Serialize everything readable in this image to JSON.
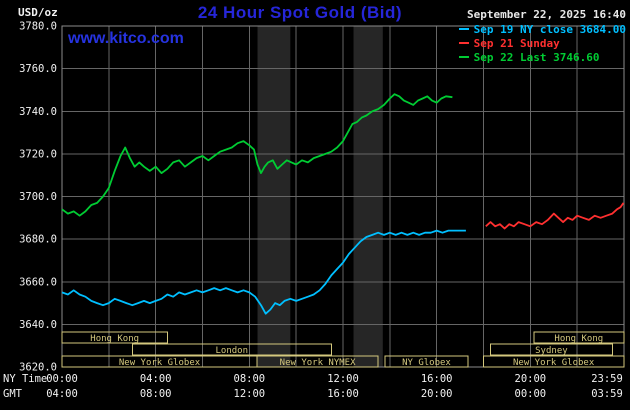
{
  "header": {
    "unit_label": "USD/oz",
    "title": "24 Hour Spot Gold (Bid)",
    "datetime": "September 22, 2025 16:40",
    "watermark": "www.kitco.com"
  },
  "legend": [
    {
      "label": "Sep 19 NY close 3684.00",
      "color": "#00bfff"
    },
    {
      "label": "Sep 21 Sunday",
      "color": "#ff3030"
    },
    {
      "label": "Sep 22 Last 3746.60",
      "color": "#00cc33"
    }
  ],
  "axes": {
    "y_ticks": [
      "3780.0",
      "3760.0",
      "3740.0",
      "3720.0",
      "3700.0",
      "3680.0",
      "3660.0",
      "3640.0",
      "3620.0"
    ],
    "x_rows": [
      {
        "label": "NY Time",
        "ticks": [
          "00:00",
          "04:00",
          "08:00",
          "12:00",
          "16:00",
          "20:00",
          "23:59"
        ]
      },
      {
        "label": "GMT",
        "ticks": [
          "04:00",
          "08:00",
          "12:00",
          "16:00",
          "20:00",
          "00:00",
          "03:59"
        ]
      }
    ]
  },
  "chart_data": {
    "type": "line",
    "title": "24 Hour Spot Gold (Bid)",
    "ylabel": "USD/oz",
    "xlabel": "NY Time (hours)",
    "xlim": [
      0,
      24
    ],
    "ylim": [
      3620,
      3780
    ],
    "y_tick_step": 20,
    "x_tick_hours": [
      0,
      4,
      8,
      12,
      16,
      20,
      23.983
    ],
    "grid": true,
    "legend_position": "top-right",
    "colors": {
      "grid": "#666666",
      "border": "#8c8c8c",
      "band": "#262626",
      "session": "#d4c87e",
      "axis_text": "#f2f2f2"
    },
    "bands": [
      {
        "from": 8.35,
        "to": 9.75
      },
      {
        "from": 12.45,
        "to": 13.7
      }
    ],
    "sessions": [
      {
        "row": 0,
        "label": "Hong Kong",
        "from": 0,
        "to": 4.5
      },
      {
        "row": 0,
        "label": "Hong Kong",
        "from": 20.15,
        "to": 23.99
      },
      {
        "row": 1,
        "label": "London",
        "from": 3.0,
        "to": 11.5
      },
      {
        "row": 1,
        "label": "Sydney",
        "from": 18.3,
        "to": 23.5
      },
      {
        "row": 2,
        "label": "New York Globex",
        "from": 0,
        "to": 8.33
      },
      {
        "row": 2,
        "label": "New York NYMEX",
        "from": 8.33,
        "to": 13.5
      },
      {
        "row": 2,
        "label": "NY Globex",
        "from": 13.8,
        "to": 17.33
      },
      {
        "row": 2,
        "label": "New York Globex",
        "from": 18.0,
        "to": 23.99
      }
    ],
    "series": [
      {
        "id": "sep19",
        "name": "Sep 19 NY close",
        "close": 3684.0,
        "color": "#00bfff",
        "points": [
          [
            0,
            3655
          ],
          [
            0.25,
            3654
          ],
          [
            0.5,
            3656
          ],
          [
            0.75,
            3654
          ],
          [
            1,
            3653
          ],
          [
            1.25,
            3651
          ],
          [
            1.5,
            3650
          ],
          [
            1.75,
            3649
          ],
          [
            2,
            3650
          ],
          [
            2.25,
            3652
          ],
          [
            2.5,
            3651
          ],
          [
            2.75,
            3650
          ],
          [
            3,
            3649
          ],
          [
            3.25,
            3650
          ],
          [
            3.5,
            3651
          ],
          [
            3.75,
            3650
          ],
          [
            4,
            3651
          ],
          [
            4.25,
            3652
          ],
          [
            4.5,
            3654
          ],
          [
            4.75,
            3653
          ],
          [
            5,
            3655
          ],
          [
            5.25,
            3654
          ],
          [
            5.5,
            3655
          ],
          [
            5.75,
            3656
          ],
          [
            6,
            3655
          ],
          [
            6.25,
            3656
          ],
          [
            6.5,
            3657
          ],
          [
            6.75,
            3656
          ],
          [
            7,
            3657
          ],
          [
            7.25,
            3656
          ],
          [
            7.5,
            3655
          ],
          [
            7.75,
            3656
          ],
          [
            8,
            3655
          ],
          [
            8.25,
            3653
          ],
          [
            8.5,
            3649
          ],
          [
            8.7,
            3645
          ],
          [
            8.9,
            3647
          ],
          [
            9.1,
            3650
          ],
          [
            9.3,
            3649
          ],
          [
            9.5,
            3651
          ],
          [
            9.75,
            3652
          ],
          [
            10,
            3651
          ],
          [
            10.25,
            3652
          ],
          [
            10.5,
            3653
          ],
          [
            10.75,
            3654
          ],
          [
            11,
            3656
          ],
          [
            11.25,
            3659
          ],
          [
            11.5,
            3663
          ],
          [
            11.75,
            3666
          ],
          [
            12,
            3669
          ],
          [
            12.25,
            3673
          ],
          [
            12.5,
            3676
          ],
          [
            12.75,
            3679
          ],
          [
            13,
            3681
          ],
          [
            13.25,
            3682
          ],
          [
            13.5,
            3683
          ],
          [
            13.75,
            3682
          ],
          [
            14,
            3683
          ],
          [
            14.25,
            3682
          ],
          [
            14.5,
            3683
          ],
          [
            14.75,
            3682
          ],
          [
            15,
            3683
          ],
          [
            15.25,
            3682
          ],
          [
            15.5,
            3683
          ],
          [
            15.75,
            3683
          ],
          [
            16,
            3684
          ],
          [
            16.25,
            3683
          ],
          [
            16.5,
            3684
          ],
          [
            16.75,
            3684
          ],
          [
            17.25,
            3684
          ]
        ]
      },
      {
        "id": "sep21",
        "name": "Sep 21 Sunday",
        "color": "#ff3030",
        "points": [
          [
            18.1,
            3686
          ],
          [
            18.3,
            3688
          ],
          [
            18.5,
            3686
          ],
          [
            18.7,
            3687
          ],
          [
            18.9,
            3685
          ],
          [
            19.1,
            3687
          ],
          [
            19.3,
            3686
          ],
          [
            19.5,
            3688
          ],
          [
            19.75,
            3687
          ],
          [
            20,
            3686
          ],
          [
            20.25,
            3688
          ],
          [
            20.5,
            3687
          ],
          [
            20.75,
            3689
          ],
          [
            21,
            3692
          ],
          [
            21.2,
            3690
          ],
          [
            21.4,
            3688
          ],
          [
            21.6,
            3690
          ],
          [
            21.8,
            3689
          ],
          [
            22,
            3691
          ],
          [
            22.25,
            3690
          ],
          [
            22.5,
            3689
          ],
          [
            22.75,
            3691
          ],
          [
            23,
            3690
          ],
          [
            23.25,
            3691
          ],
          [
            23.5,
            3692
          ],
          [
            23.7,
            3694
          ],
          [
            23.85,
            3695
          ],
          [
            23.98,
            3697
          ]
        ]
      },
      {
        "id": "sep22",
        "name": "Sep 22 Last",
        "last": 3746.6,
        "color": "#00cc33",
        "points": [
          [
            0,
            3694
          ],
          [
            0.25,
            3692
          ],
          [
            0.5,
            3693
          ],
          [
            0.75,
            3691
          ],
          [
            1,
            3693
          ],
          [
            1.25,
            3696
          ],
          [
            1.5,
            3697
          ],
          [
            1.75,
            3700
          ],
          [
            2,
            3704
          ],
          [
            2.25,
            3712
          ],
          [
            2.5,
            3719
          ],
          [
            2.7,
            3723
          ],
          [
            2.9,
            3718
          ],
          [
            3.1,
            3714
          ],
          [
            3.3,
            3716
          ],
          [
            3.5,
            3714
          ],
          [
            3.75,
            3712
          ],
          [
            4,
            3714
          ],
          [
            4.25,
            3711
          ],
          [
            4.5,
            3713
          ],
          [
            4.75,
            3716
          ],
          [
            5,
            3717
          ],
          [
            5.25,
            3714
          ],
          [
            5.5,
            3716
          ],
          [
            5.75,
            3718
          ],
          [
            6,
            3719
          ],
          [
            6.25,
            3717
          ],
          [
            6.5,
            3719
          ],
          [
            6.75,
            3721
          ],
          [
            7,
            3722
          ],
          [
            7.25,
            3723
          ],
          [
            7.5,
            3725
          ],
          [
            7.75,
            3726
          ],
          [
            8,
            3724
          ],
          [
            8.2,
            3722
          ],
          [
            8.35,
            3715
          ],
          [
            8.5,
            3711
          ],
          [
            8.65,
            3714
          ],
          [
            8.8,
            3716
          ],
          [
            9,
            3717
          ],
          [
            9.2,
            3713
          ],
          [
            9.4,
            3715
          ],
          [
            9.6,
            3717
          ],
          [
            9.8,
            3716
          ],
          [
            10,
            3715
          ],
          [
            10.25,
            3717
          ],
          [
            10.5,
            3716
          ],
          [
            10.75,
            3718
          ],
          [
            11,
            3719
          ],
          [
            11.25,
            3720
          ],
          [
            11.5,
            3721
          ],
          [
            11.75,
            3723
          ],
          [
            12,
            3726
          ],
          [
            12.2,
            3730
          ],
          [
            12.4,
            3734
          ],
          [
            12.6,
            3735
          ],
          [
            12.8,
            3737
          ],
          [
            13,
            3738
          ],
          [
            13.25,
            3740
          ],
          [
            13.5,
            3741
          ],
          [
            13.75,
            3743
          ],
          [
            14,
            3746
          ],
          [
            14.2,
            3748
          ],
          [
            14.4,
            3747
          ],
          [
            14.6,
            3745
          ],
          [
            14.8,
            3744
          ],
          [
            15,
            3743
          ],
          [
            15.2,
            3745
          ],
          [
            15.4,
            3746
          ],
          [
            15.6,
            3747
          ],
          [
            15.8,
            3745
          ],
          [
            16,
            3744
          ],
          [
            16.2,
            3746
          ],
          [
            16.4,
            3747
          ],
          [
            16.67,
            3746.6
          ]
        ]
      }
    ]
  }
}
